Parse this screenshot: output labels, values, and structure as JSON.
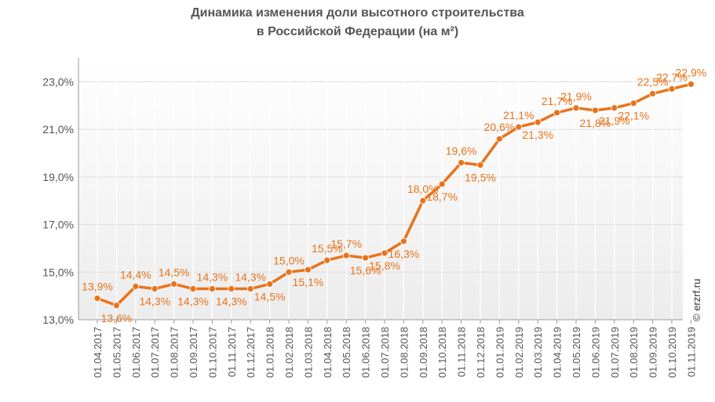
{
  "title_line1": "Динамика изменения доли высотного строительства",
  "title_line2": "в Российской  Федерации (на м²)",
  "watermark": "© erzrf.ru",
  "colors": {
    "line": "#e8731a",
    "label": "#e8731a",
    "axis_text": "#555555",
    "grid": "#e6e6e6"
  },
  "chart_data": {
    "type": "line",
    "title": "Динамика изменения доли высотного строительства в Российской  Федерации (на м²)",
    "xlabel": "",
    "ylabel": "",
    "ylim": [
      13,
      24
    ],
    "grid": true,
    "legend": "none",
    "y_ticks": [
      13,
      15,
      17,
      19,
      21,
      23
    ],
    "y_tick_labels": [
      "13,0%",
      "15,0%",
      "17,0%",
      "19,0%",
      "21,0%",
      "23,0%"
    ],
    "categories": [
      "01.04.2017",
      "01.05.2017",
      "01.06.2017",
      "01.07.2017",
      "01.08.2017",
      "01.09.2017",
      "01.10.2017",
      "01.11.2017",
      "01.12.2017",
      "01.01.2018",
      "01.02.2018",
      "01.03.2018",
      "01.04.2018",
      "01.05.2018",
      "01.06.2018",
      "01.07.2018",
      "01.08.2018",
      "01.09.2018",
      "01.10.2018",
      "01.11.2018",
      "01.12.2018",
      "01.01.2019",
      "01.02.2019",
      "01.03.2019",
      "01.04.2019",
      "01.05.2019",
      "01.06.2019",
      "01.07.2019",
      "01.08.2019",
      "01.09.2019",
      "01.10.2019",
      "01.11.2019"
    ],
    "values": [
      13.9,
      13.6,
      14.4,
      14.3,
      14.5,
      14.3,
      14.3,
      14.3,
      14.3,
      14.5,
      15.0,
      15.1,
      15.5,
      15.7,
      15.6,
      15.8,
      16.3,
      18.0,
      18.7,
      19.6,
      19.5,
      20.6,
      21.1,
      21.3,
      21.7,
      21.9,
      21.8,
      21.9,
      22.1,
      22.5,
      22.7,
      22.9
    ],
    "data_labels": [
      "13,9%",
      "13,6%",
      "14,4%",
      "14,3%",
      "14,5%",
      "14,3%",
      "14,3%",
      "14,3%",
      "14,3%",
      "14,5%",
      "15,0%",
      "15,1%",
      "15,5%",
      "15,7%",
      "15,6%",
      "15,8%",
      "16,3%",
      "18,0%",
      "18,7%",
      "19,6%",
      "19,5%",
      "20,6%",
      "21,1%",
      "21,3%",
      "21,7%",
      "21,9%",
      "21,8%",
      "21,9%",
      "22,1%",
      "22,5%",
      "22,7%",
      "22,9%"
    ],
    "label_positions": [
      "above",
      "below",
      "above",
      "below",
      "above",
      "below",
      "above",
      "below",
      "above",
      "below",
      "above",
      "below",
      "above",
      "above",
      "below",
      "below",
      "below",
      "above",
      "below",
      "above",
      "below",
      "above",
      "above",
      "below",
      "above",
      "above",
      "below",
      "below",
      "below",
      "above",
      "above",
      "above"
    ]
  }
}
